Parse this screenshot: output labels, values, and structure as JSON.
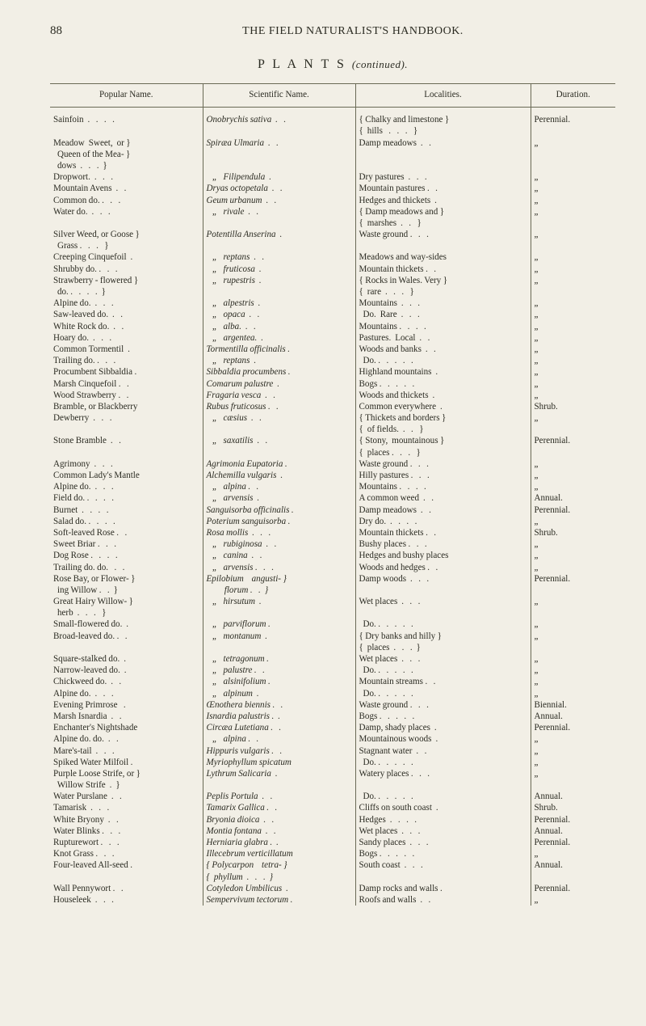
{
  "page_number": "88",
  "running_title": "THE FIELD NATURALIST'S HANDBOOK.",
  "section_heading": "P L A N T S",
  "section_cont": "(continued).",
  "columns": {
    "popular": "Popular Name.",
    "scientific": "Scientific Name.",
    "localities": "Localities.",
    "duration": "Duration."
  },
  "rows": [
    {
      "p": "Sainfoin  .   .   .   .",
      "s": "Onobrychis sativa  .   .",
      "l": "{ Chalky and limestone }\n{  hills   .   .   .   }",
      "d": "Perennial."
    },
    {
      "p": "Meadow  Sweet,  or }\n  Queen of the Mea- }\n  dows  .   .   .  }",
      "s": "Spiræa Ulmaria  .   .",
      "l": "Damp meadows  .   .",
      "d": "„"
    },
    {
      "p": "Dropwort.  .   .   .",
      "s": "   „   Filipendula  .",
      "l": "Dry pastures  .   .   .",
      "d": "„"
    },
    {
      "p": "Mountain Avens  .   .",
      "s": "Dryas octopetala  .   .",
      "l": "Mountain pastures .   .",
      "d": "„"
    },
    {
      "p": "Common do. .   .   .",
      "s": "Geum urbanum  .   .",
      "l": "Hedges and thickets  .",
      "d": "„"
    },
    {
      "p": "Water do.  .   .   .",
      "s": "   „   rivale  .   .",
      "l": "{ Damp meadows and }\n{  marshes  .   .   }",
      "d": "„"
    },
    {
      "p": "Silver Weed, or Goose }\n  Grass .   .   .   }",
      "s": "Potentilla Anserina  .",
      "l": "Waste ground .   .   .",
      "d": "„"
    },
    {
      "p": "Creeping Cinquefoil  .",
      "s": "   „   reptans  .   .",
      "l": "Meadows and way-sides",
      "d": "„"
    },
    {
      "p": "Shrubby do. .   .   .",
      "s": "   „   fruticosa  .",
      "l": "Mountain thickets .   .",
      "d": "„"
    },
    {
      "p": "Strawberry - flowered }\n  do. .   .   .   .  }",
      "s": "   „   rupestris  .",
      "l": "{ Rocks in Wales. Very }\n{  rare  .   .   .   }",
      "d": "„"
    },
    {
      "p": "Alpine do.  .   .   .",
      "s": "   „   alpestris  .",
      "l": "Mountains  .   .   .",
      "d": "„"
    },
    {
      "p": "Saw-leaved do.  .   .",
      "s": "   „   opaca  .   .",
      "l": "  Do.  Rare  .   .   .",
      "d": "„"
    },
    {
      "p": "White Rock do.  .   .",
      "s": "   „   alba.  .   .",
      "l": "Mountains .   .   .   .",
      "d": "„"
    },
    {
      "p": "Hoary do.  .   .   .",
      "s": "   „   argentea.  .",
      "l": "Pastures.  Local  .   .",
      "d": "„"
    },
    {
      "p": "Common Tormentil  .",
      "s": "Tormentilla officinalis .",
      "l": "Woods and banks  .   .",
      "d": "„"
    },
    {
      "p": "Trailing do. .   .   .",
      "s": "   „   reptans  .",
      "l": "  Do. .   .   .   .   .",
      "d": "„"
    },
    {
      "p": "Procumbent Sibbaldia .",
      "s": "Sibbaldia procumbens .",
      "l": "Highland mountains  .",
      "d": "„"
    },
    {
      "p": "Marsh Cinquefoil .   .",
      "s": "Comarum palustre  .",
      "l": "Bogs .   .   .   .   .",
      "d": "„"
    },
    {
      "p": "Wood Strawberry .   .",
      "s": "Fragaria vesca  .   .",
      "l": "Woods and thickets  .",
      "d": "„"
    },
    {
      "p": "Bramble, or Blackberry",
      "s": "Rubus fruticosus .   .",
      "l": "Common everywhere  .",
      "d": "Shrub."
    },
    {
      "p": "Dewberry  .   .   .",
      "s": "   „   cæsius  .   .",
      "l": "{ Thickets and borders }\n{  of fields.  .   .   }",
      "d": "„"
    },
    {
      "p": "Stone Bramble  .   .",
      "s": "   „   saxatilis  .   .",
      "l": "{ Stony,  mountainous }\n{  places .   .   .   }",
      "d": "Perennial."
    },
    {
      "p": "Agrimony  .   .   .",
      "s": "Agrimonia Eupatoria .",
      "l": "Waste ground .   .   .",
      "d": "„"
    },
    {
      "p": "Common Lady's Mantle",
      "s": "Alchemilla vulgaris  .",
      "l": "Hilly pastures .   .   .",
      "d": "„"
    },
    {
      "p": "Alpine do.  .   .   .",
      "s": "   „   alpina .   .",
      "l": "Mountains .   .   .   .",
      "d": "„"
    },
    {
      "p": "Field do. .   .   .   .",
      "s": "   „   arvensis  .",
      "l": "A common weed  .   .",
      "d": "Annual."
    },
    {
      "p": "Burnet  .   .   .   .",
      "s": "Sanguisorba officinalis .",
      "l": "Damp meadows  .   .",
      "d": "Perennial."
    },
    {
      "p": "Salad do. .   .   .   .",
      "s": "Poterium sanguisorba .",
      "l": "Dry do.  .   .   .   .",
      "d": "„"
    },
    {
      "p": "Soft-leaved Rose .   .",
      "s": "Rosa mollis  .   .   .",
      "l": "Mountain thickets .   .",
      "d": "Shrub."
    },
    {
      "p": "Sweet Briar .   .   .",
      "s": "   „   rubiginosa  .   .",
      "l": "Bushy places .   .   .",
      "d": "„"
    },
    {
      "p": "Dog Rose .   .   .   .",
      "s": "   „   canina  .   .",
      "l": "Hedges and bushy places",
      "d": "„"
    },
    {
      "p": "Trailing do. do.   .   .",
      "s": "   „   arvensis .   .   .",
      "l": "Woods and hedges .   .",
      "d": "„"
    },
    {
      "p": "Rose Bay, or Flower- }\n  ing Willow .   .  }",
      "s": "Epilobium    angusti- }\n         florum .   .  }",
      "l": "Damp woods  .   .   .",
      "d": "Perennial."
    },
    {
      "p": "Great Hairy Willow- }\n  herb  .   .   .   }",
      "s": "   „   hirsutum  .",
      "l": "Wet places  .   .   .",
      "d": "„"
    },
    {
      "p": "Small-flowered do.  .",
      "s": "   „   parviflorum .",
      "l": "  Do. .   .   .   .   .",
      "d": "„"
    },
    {
      "p": "Broad-leaved do. .   .",
      "s": "   „   montanum  .",
      "l": "{ Dry banks and hilly }\n{  places  .   .   .  }",
      "d": "„"
    },
    {
      "p": "Square-stalked do.  .",
      "s": "   „   tetragonum .",
      "l": "Wet places  .   .   .",
      "d": "„"
    },
    {
      "p": "Narrow-leaved do.  .",
      "s": "   „   palustre .   .",
      "l": "  Do. .   .   .   .   .",
      "d": "„"
    },
    {
      "p": "Chickweed do.  .   .",
      "s": "   „   alsinifolium .",
      "l": "Mountain streams .   .",
      "d": "„"
    },
    {
      "p": "Alpine do.  .   .   .",
      "s": "   „   alpinum  .",
      "l": "  Do. .   .   .   .   .",
      "d": "„"
    },
    {
      "p": "Evening Primrose   .",
      "s": "Œnothera biennis .   .",
      "l": "Waste ground .   .   .",
      "d": "Biennial."
    },
    {
      "p": "Marsh Isnardia  .   .",
      "s": "Isnardia palustris .  .",
      "l": "Bogs .   .   .   .   .",
      "d": "Annual."
    },
    {
      "p": "Enchanter's Nightshade",
      "s": "Circæa Lutetiana .   .",
      "l": "Damp, shady places  .",
      "d": "Perennial."
    },
    {
      "p": "Alpine do. do.  .   .",
      "s": "   „   alpina .   .",
      "l": "Mountainous woods  .",
      "d": "„"
    },
    {
      "p": "Mare's-tail  .   .   .",
      "s": "Hippuris vulgaris .   .",
      "l": "Stagnant water  .   .",
      "d": "„"
    },
    {
      "p": "Spiked Water Milfoil .",
      "s": "Myriophyllum spicatum",
      "l": "  Do. .   .   .   .   .",
      "d": "„"
    },
    {
      "p": "Purple Loose Strife, or }\n  Willow Strife  .  }",
      "s": "Lythrum Salicaria  .",
      "l": "Watery places .   .   .",
      "d": "„"
    },
    {
      "p": "Water Purslane  .   .",
      "s": "Peplis Portula  .   .",
      "l": "  Do. .   .   .   .   .",
      "d": "Annual."
    },
    {
      "p": "Tamarisk  .   .   .",
      "s": "Tamarix Gallica .   .",
      "l": "Cliffs on south coast  .",
      "d": "Shrub."
    },
    {
      "p": "White Bryony  .   .",
      "s": "Bryonia dioica  .   .",
      "l": "Hedges  .   .   .   .",
      "d": "Perennial."
    },
    {
      "p": "Water Blinks .   .   .",
      "s": "Montia fontana  .   .",
      "l": "Wet places  .   .   .",
      "d": "Annual."
    },
    {
      "p": "Rupturewort .   .   .",
      "s": "Herniaria glabra .  .",
      "l": "Sandy places  .   .   .",
      "d": "Perennial."
    },
    {
      "p": "Knot Grass .   .   .",
      "s": "Illecebrum verticillatum",
      "l": "Bogs .   .   .   .   .",
      "d": "„"
    },
    {
      "p": "Four-leaved All-seed .",
      "s": "{ Polycarpon    tetra- }\n{  phyllum  .   .   .  }",
      "l": "South coast  .   .   .",
      "d": "Annual."
    },
    {
      "p": "Wall Pennywort .   .",
      "s": "Cotyledon Umbilicus  .",
      "l": "Damp rocks and walls .",
      "d": "Perennial."
    },
    {
      "p": "Houseleek  .   .   .",
      "s": "Sempervivum tectorum .",
      "l": "Roofs and walls  .   .",
      "d": "„"
    }
  ]
}
